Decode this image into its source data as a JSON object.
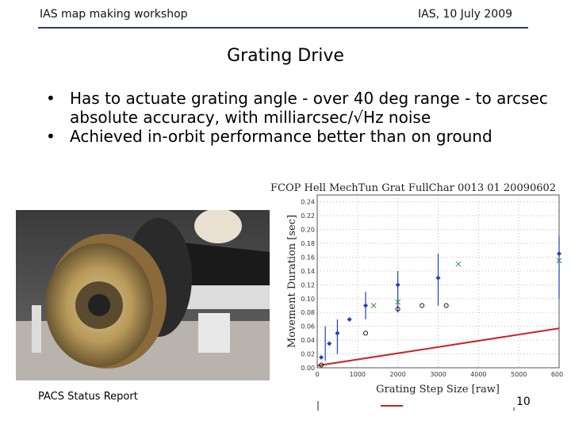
{
  "header": {
    "left": "IAS map making workshop",
    "right": "IAS, 10 July 2009"
  },
  "title": "Grating Drive",
  "bullets": [
    "Has to actuate grating angle - over 40 deg range - to arcsec absolute accuracy, with milliarcsec/√Hz noise",
    "Achieved in-orbit performance better than on ground"
  ],
  "footer": {
    "left": "PACS Status Report",
    "page": "10"
  },
  "chart_data": {
    "type": "scatter",
    "title": "FCOP Hell MechTun Grat FullChar 0013 01 20090602",
    "xlabel": "Grating Step Size [raw]",
    "ylabel": "Movement Duration [sec]",
    "xlim": [
      0,
      6000
    ],
    "ylim": [
      0,
      0.25
    ],
    "x_ticks": [
      "0",
      "1000",
      "2000",
      "3000",
      "4000",
      "5000",
      "6000"
    ],
    "y_ticks": [
      "0.00",
      "0.02",
      "0.04",
      "0.06",
      "0.08",
      "0.10",
      "0.12",
      "0.14",
      "0.16",
      "0.18",
      "0.20",
      "0.22",
      "0.24"
    ],
    "colors": {
      "blue": "#1f3fbf",
      "green": "#2f9a3a",
      "red": "#cc2222",
      "black": "#111111"
    },
    "fit_line": {
      "x": [
        0,
        6000
      ],
      "y": [
        0.003,
        0.057
      ]
    },
    "series": [
      {
        "color": "blue",
        "marker": "diamond",
        "x": [
          100,
          300,
          500,
          800,
          1200,
          2000,
          3000,
          6000
        ],
        "y": [
          0.015,
          0.035,
          0.05,
          0.07,
          0.09,
          0.12,
          0.13,
          0.165
        ]
      },
      {
        "color": "green",
        "marker": "x",
        "x": [
          1400,
          2000,
          3500,
          6000
        ],
        "y": [
          0.09,
          0.095,
          0.15,
          0.155
        ]
      },
      {
        "color": "black",
        "marker": "circle",
        "x": [
          100,
          1200,
          2000,
          2600,
          3200
        ],
        "y": [
          0.004,
          0.05,
          0.085,
          0.09,
          0.09
        ]
      }
    ],
    "error_bars": [
      {
        "x": 200,
        "low": 0.01,
        "high": 0.06
      },
      {
        "x": 500,
        "low": 0.02,
        "high": 0.07
      },
      {
        "x": 1200,
        "low": 0.07,
        "high": 0.11
      },
      {
        "x": 2000,
        "low": 0.08,
        "high": 0.14
      },
      {
        "x": 3000,
        "low": 0.09,
        "high": 0.165
      },
      {
        "x": 6000,
        "low": 0.1,
        "high": 0.19
      }
    ],
    "legend_position": "bottom"
  }
}
